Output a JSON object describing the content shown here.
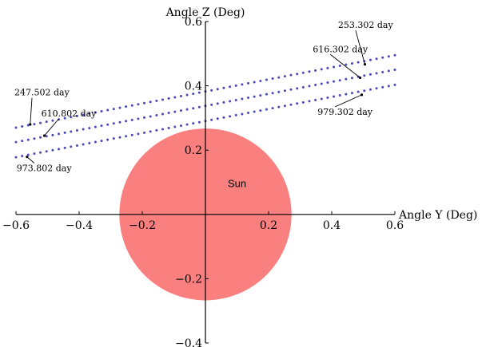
{
  "chart_data": {
    "type": "scatter",
    "title": "",
    "xlabel": "Angle Y (Deg)",
    "ylabel": "Angle Z (Deg)",
    "xlim": [
      -0.6,
      0.6
    ],
    "ylim": [
      -0.4,
      0.6
    ],
    "x_ticks": [
      -0.6,
      -0.4,
      -0.2,
      0.2,
      0.4,
      0.6
    ],
    "x_tick_labels": [
      "−0.6",
      "−0.4",
      "−0.2",
      "0.2",
      "0.4",
      "0.6"
    ],
    "y_ticks": [
      -0.4,
      -0.2,
      0.2,
      0.4,
      0.6
    ],
    "y_tick_labels": [
      "−0.4",
      "−0.2",
      "0.2",
      "0.4",
      "0.6"
    ],
    "grid": false,
    "sun": {
      "label": "Sun",
      "center": [
        0,
        0
      ],
      "radius": 0.27,
      "color": "#fa7f7f"
    },
    "point_color": "#4a4ab8",
    "series": [
      {
        "y_start": 0.27,
        "y_end": 0.495,
        "x_start": -0.6,
        "x_end": 0.6
      },
      {
        "y_start": 0.225,
        "y_end": 0.45,
        "x_start": -0.6,
        "x_end": 0.6
      },
      {
        "y_start": 0.178,
        "y_end": 0.403,
        "x_start": -0.6,
        "x_end": 0.6
      }
    ],
    "annotations": [
      {
        "text": "253.302 day",
        "point": [
          0.505,
          0.467
        ],
        "text_pos": [
          0.42,
          0.58
        ]
      },
      {
        "text": "616.302 day",
        "point": [
          0.49,
          0.425
        ],
        "text_pos": [
          0.34,
          0.505
        ]
      },
      {
        "text": "979.302 day",
        "point": [
          0.495,
          0.372
        ],
        "text_pos": [
          0.355,
          0.31
        ]
      },
      {
        "text": "247.502 day",
        "point": [
          -0.555,
          0.28
        ],
        "text_pos": [
          -0.605,
          0.37
        ]
      },
      {
        "text": "610.802 day",
        "point": [
          -0.51,
          0.245
        ],
        "text_pos": [
          -0.52,
          0.305
        ]
      },
      {
        "text": "973.802 day",
        "point": [
          -0.565,
          0.179
        ],
        "text_pos": [
          -0.598,
          0.135
        ]
      }
    ]
  }
}
